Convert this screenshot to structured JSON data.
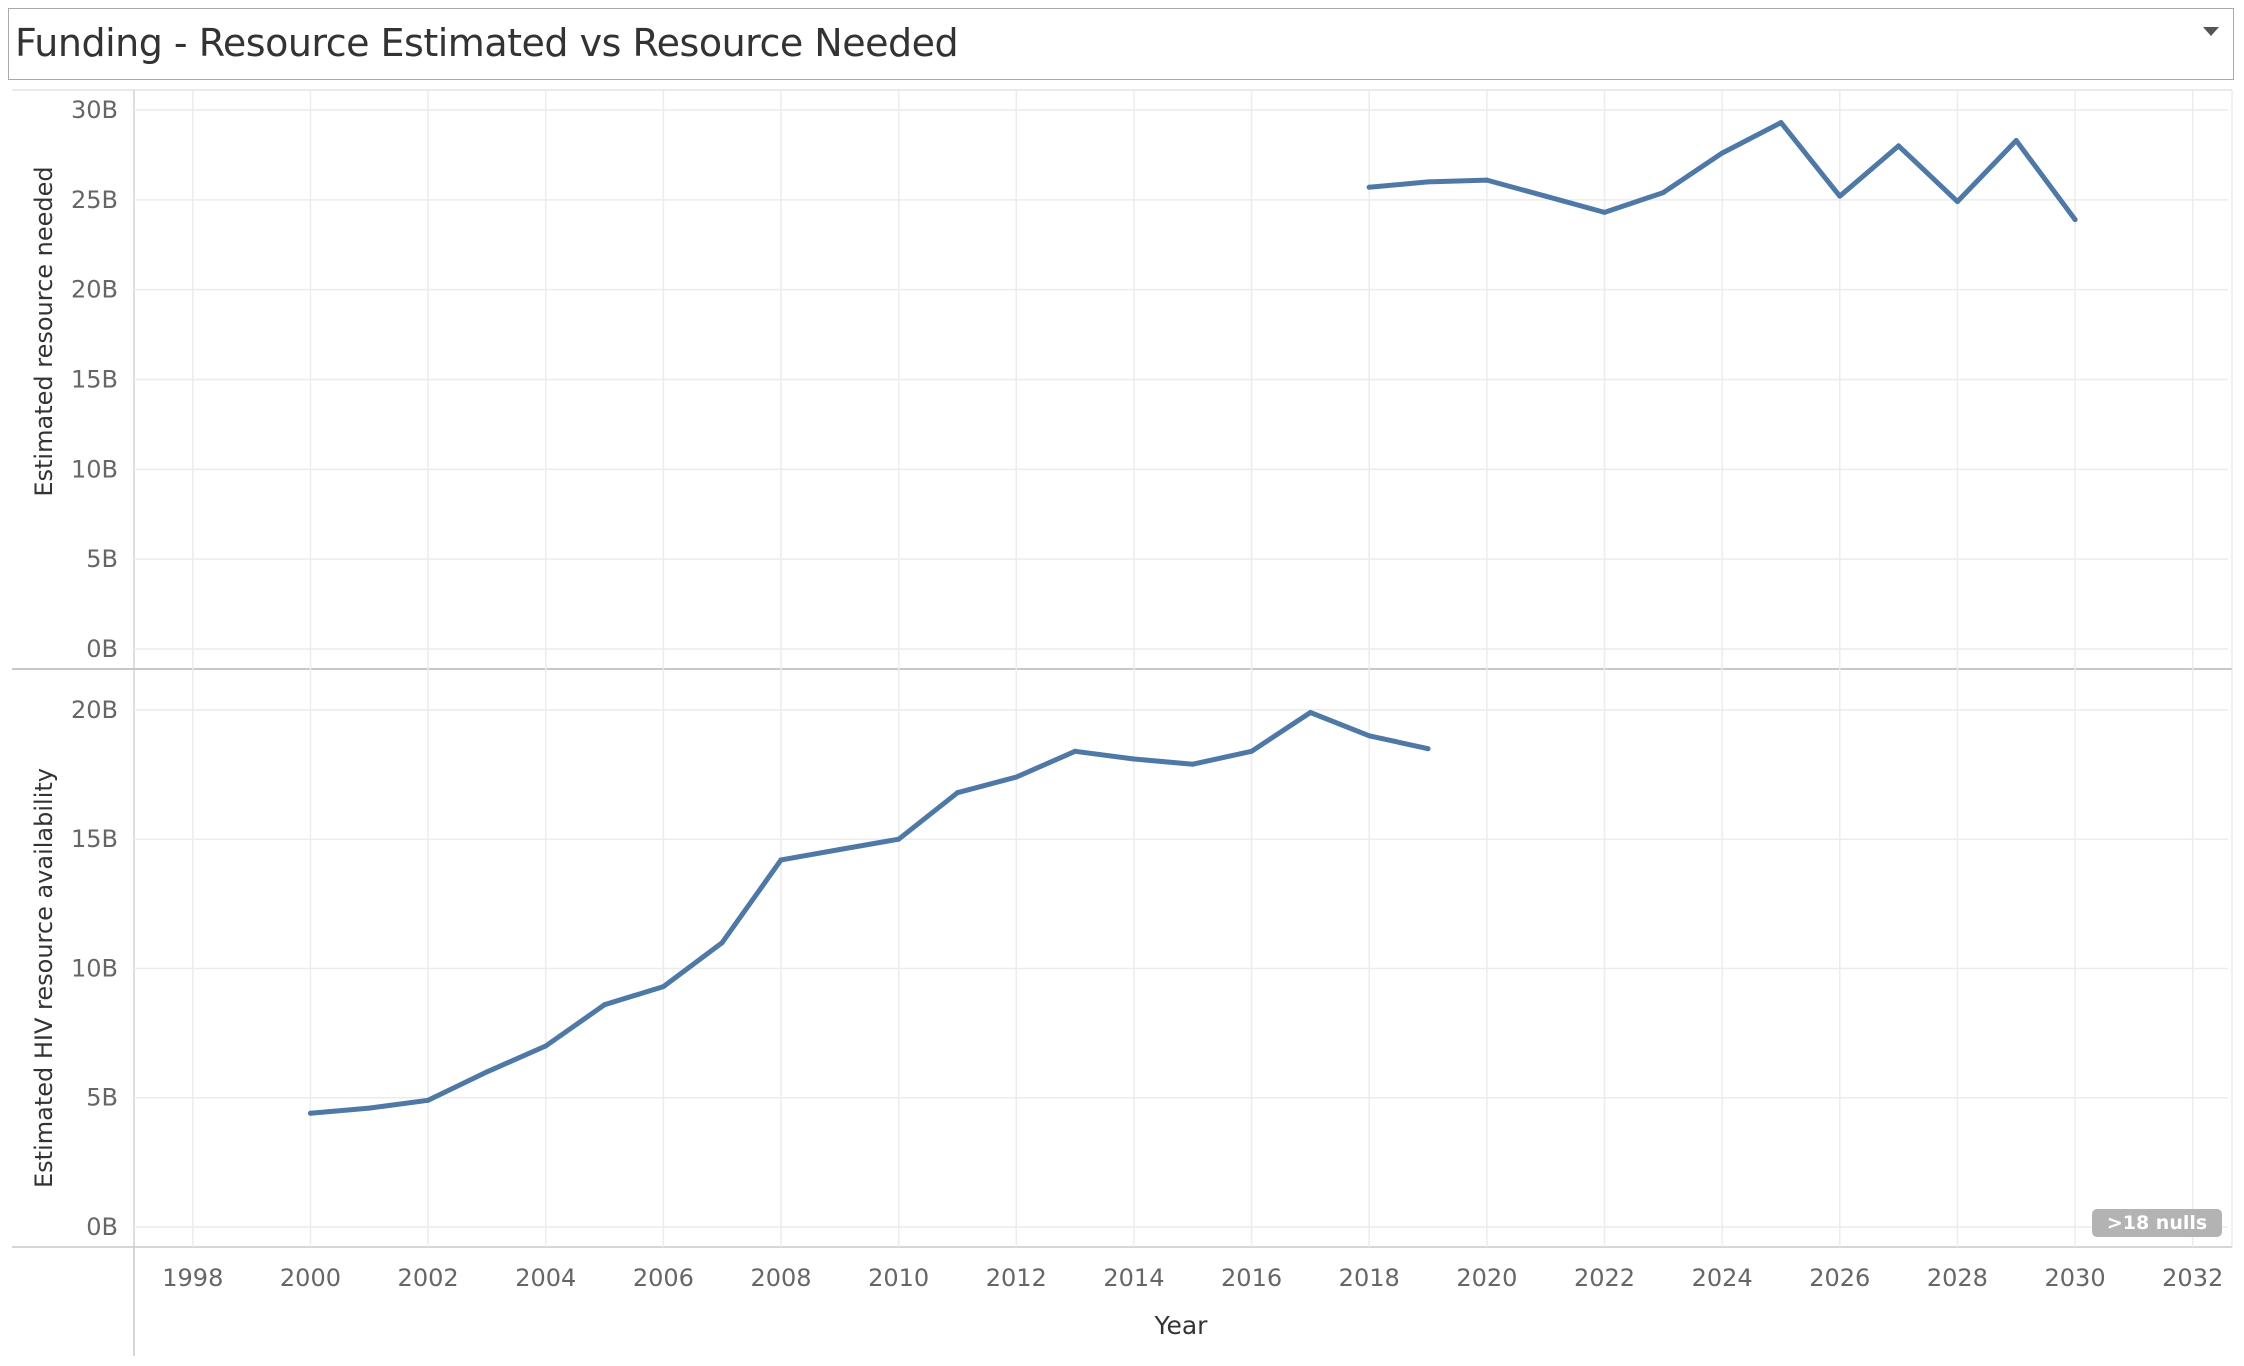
{
  "title_bar": {
    "title": "Funding - Resource Estimated vs Resource Needed"
  },
  "nulls_badge": ">18 nulls",
  "colors": {
    "line": "#4e79a7",
    "grid": "#ececec",
    "axis_text": "#666666"
  },
  "chart_data": [
    {
      "type": "line",
      "ylabel": "Estimated resource needed",
      "ylim": [
        0,
        30
      ],
      "yticks": [
        "0B",
        "5B",
        "10B",
        "15B",
        "20B",
        "25B",
        "30B"
      ],
      "ytick_values": [
        0,
        5,
        10,
        15,
        20,
        25,
        30
      ],
      "series": [
        {
          "x": [
            2018,
            2019,
            2020,
            2021,
            2022,
            2023,
            2024,
            2025,
            2026,
            2027,
            2028,
            2029,
            2030
          ],
          "values": [
            25.7,
            26.0,
            26.1,
            25.2,
            24.3,
            25.4,
            27.6,
            29.3,
            25.2,
            28.0,
            24.9,
            28.3,
            23.9
          ]
        }
      ]
    },
    {
      "type": "line",
      "ylabel": "Estimated HIV resource availability",
      "ylim": [
        0,
        20.5
      ],
      "yticks": [
        "0B",
        "5B",
        "10B",
        "15B",
        "20B"
      ],
      "ytick_values": [
        0,
        5,
        10,
        15,
        20
      ],
      "series": [
        {
          "x": [
            2000,
            2001,
            2002,
            2003,
            2004,
            2005,
            2006,
            2007,
            2008,
            2009,
            2010,
            2011,
            2012,
            2013,
            2014,
            2015,
            2016,
            2017,
            2018,
            2019
          ],
          "values": [
            4.4,
            4.6,
            4.9,
            6.0,
            7.0,
            8.6,
            9.3,
            11.0,
            14.2,
            14.6,
            15.0,
            16.8,
            17.4,
            18.4,
            18.1,
            17.9,
            18.4,
            19.9,
            19.0,
            18.5
          ]
        }
      ]
    }
  ],
  "x_axis": {
    "label": "Year",
    "range": [
      1997,
      2032.6
    ],
    "ticks": [
      "1998",
      "2000",
      "2002",
      "2004",
      "2006",
      "2008",
      "2010",
      "2012",
      "2014",
      "2016",
      "2018",
      "2020",
      "2022",
      "2024",
      "2026",
      "2028",
      "2030",
      "2032"
    ],
    "tick_values": [
      1998,
      2000,
      2002,
      2004,
      2006,
      2008,
      2010,
      2012,
      2014,
      2016,
      2018,
      2020,
      2022,
      2024,
      2026,
      2028,
      2030,
      2032
    ]
  }
}
